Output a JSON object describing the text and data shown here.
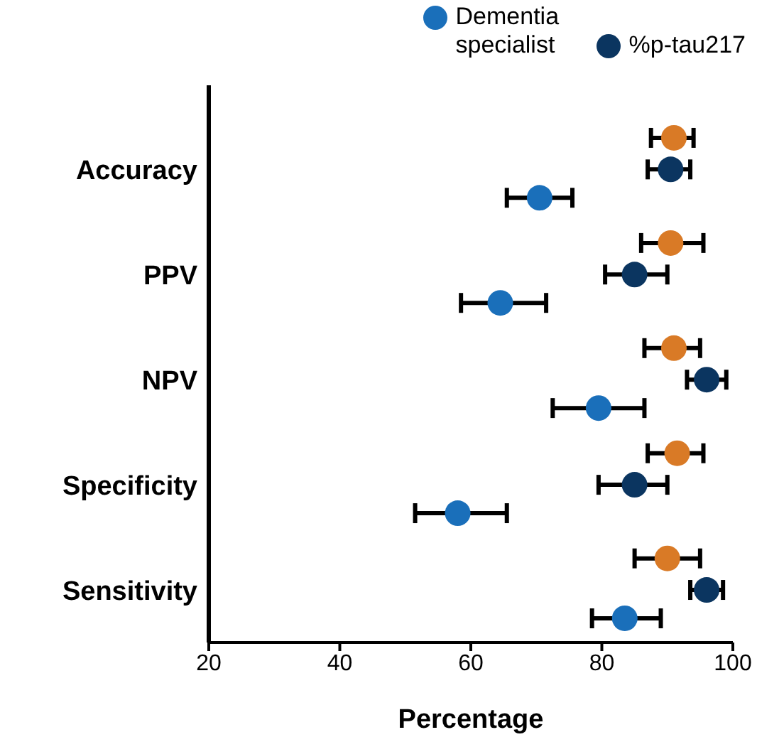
{
  "chart_data": {
    "type": "scatter",
    "orientation": "horizontal",
    "xlabel": "Percentage",
    "categories": [
      "Accuracy",
      "PPV",
      "NPV",
      "Specificity",
      "Sensitivity"
    ],
    "xlim": [
      20,
      100
    ],
    "xticks": [
      20,
      40,
      60,
      80,
      100
    ],
    "legend": "top right",
    "marker": "circle",
    "grid": false,
    "series": [
      {
        "name": "Dementia specialist",
        "color": "#1a6fba",
        "values": [
          70.5,
          64.5,
          79.5,
          58,
          83.5
        ],
        "errors": [
          [
            65.5,
            75.5
          ],
          [
            58.5,
            71.5
          ],
          [
            72.5,
            86.5
          ],
          [
            51.5,
            65.5
          ],
          [
            78.5,
            89
          ]
        ]
      },
      {
        "color": "#d97a26",
        "values": [
          91,
          90.5,
          91,
          91.5,
          90
        ],
        "errors": [
          [
            87.5,
            94
          ],
          [
            86,
            95.5
          ],
          [
            86.5,
            95
          ],
          [
            87,
            95.5
          ],
          [
            85,
            95
          ]
        ]
      },
      {
        "name": "%p-tau217",
        "color": "#0b3560",
        "values": [
          90.5,
          85,
          96,
          85,
          96
        ],
        "errors": [
          [
            87,
            93.5
          ],
          [
            80.5,
            90
          ],
          [
            93,
            99
          ],
          [
            79.5,
            90
          ],
          [
            93.5,
            98.5
          ]
        ]
      }
    ]
  }
}
